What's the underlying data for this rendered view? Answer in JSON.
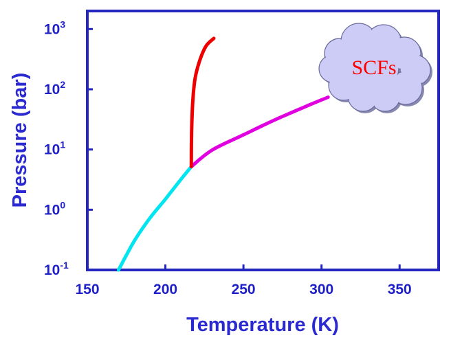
{
  "chart_data": {
    "type": "line",
    "xlabel": "Temperature (K)",
    "ylabel": "Pressure (bar)",
    "xlim": [
      150,
      375
    ],
    "ylim_log10": [
      -1,
      3.3
    ],
    "y_scale": "log",
    "grid": false,
    "x_ticks": [
      150,
      200,
      250,
      300,
      350
    ],
    "y_ticks": [
      {
        "value": 0.1,
        "base": "10",
        "exp": "-1"
      },
      {
        "value": 1,
        "base": "10",
        "exp": "0"
      },
      {
        "value": 10,
        "base": "10",
        "exp": "1"
      },
      {
        "value": 100,
        "base": "10",
        "exp": "2"
      },
      {
        "value": 1000,
        "base": "10",
        "exp": "3"
      }
    ],
    "series": [
      {
        "color": "#00e5f0",
        "points": [
          [
            170,
            0.1
          ],
          [
            180,
            0.3
          ],
          [
            190,
            0.72
          ],
          [
            200,
            1.5
          ],
          [
            210,
            3.2
          ],
          [
            216.6,
            5.2
          ]
        ]
      },
      {
        "color": "#e000e0",
        "points": [
          [
            216.6,
            5.2
          ],
          [
            230,
            9.8
          ],
          [
            250,
            17.5
          ],
          [
            270,
            31
          ],
          [
            290,
            52
          ],
          [
            304.2,
            73.8
          ]
        ]
      },
      {
        "color": "#ee0000",
        "points": [
          [
            216.6,
            5.2
          ],
          [
            216.8,
            20
          ],
          [
            217.5,
            60
          ],
          [
            219,
            150
          ],
          [
            222,
            300
          ],
          [
            226,
            520
          ],
          [
            231,
            700
          ]
        ]
      }
    ],
    "annotations": [
      {
        "text": "SCFs",
        "color": "#ff0000",
        "fill": "#ccccf6"
      }
    ],
    "frame_color": "#2525c0"
  }
}
